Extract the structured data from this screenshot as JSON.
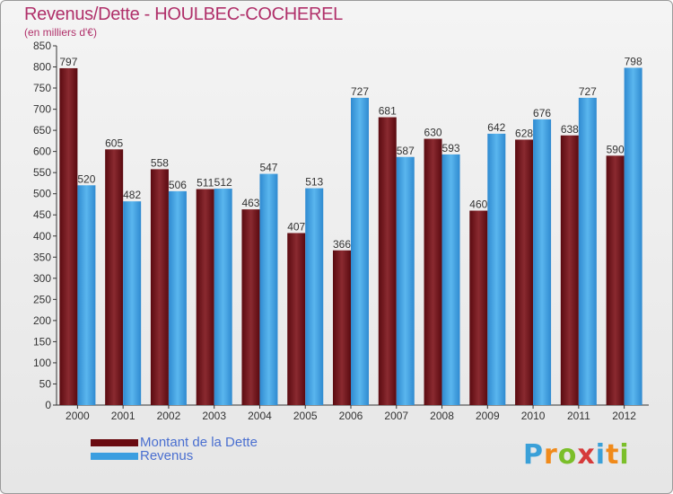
{
  "header": {
    "title": "Revenus/Dette - HOULBEC-COCHEREL",
    "subtitle": "(en milliers d'€)"
  },
  "logo": {
    "letters": [
      "P",
      "r",
      "o",
      "x",
      "i",
      "t",
      "i"
    ],
    "colors": [
      "#3aa0d8",
      "#f08a1a",
      "#7bbf2a",
      "#d63a3a",
      "#3aa0d8",
      "#f08a1a",
      "#7bbf2a"
    ]
  },
  "chart_data": {
    "type": "bar",
    "categories": [
      "2000",
      "2001",
      "2002",
      "2003",
      "2004",
      "2005",
      "2006",
      "2007",
      "2008",
      "2009",
      "2010",
      "2011",
      "2012"
    ],
    "series": [
      {
        "name": "Montant de la Dette",
        "color": "#7a1a1e",
        "values": [
          797,
          605,
          558,
          511,
          463,
          407,
          366,
          681,
          630,
          460,
          628,
          638,
          590
        ]
      },
      {
        "name": "Revenus",
        "color": "#3a9ee0",
        "values": [
          520,
          482,
          506,
          512,
          547,
          513,
          727,
          587,
          593,
          642,
          676,
          727,
          798
        ]
      }
    ],
    "ylim": [
      0,
      850
    ],
    "yticks": [
      0,
      50,
      100,
      150,
      200,
      250,
      300,
      350,
      400,
      450,
      500,
      550,
      600,
      650,
      700,
      750,
      800,
      850
    ],
    "grid": false,
    "legend_position": "bottom-left"
  }
}
